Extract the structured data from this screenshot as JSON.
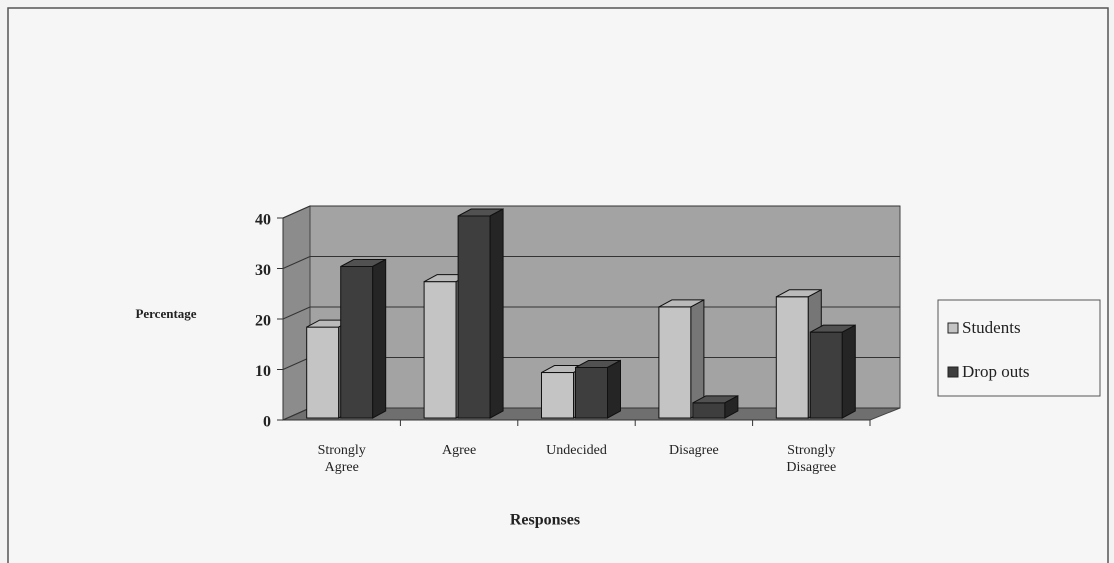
{
  "chart_data": {
    "type": "bar3d",
    "x_label": "Responses",
    "y_label": "Percentage",
    "categories": [
      "Strongly Agree",
      "Agree",
      "Undecided",
      "Disagree",
      "Strongly Disagree"
    ],
    "series": [
      {
        "name": "Students",
        "color": "#c4c4c4",
        "values": [
          18,
          27,
          9,
          22,
          24
        ]
      },
      {
        "name": "Drop outs",
        "color": "#3e3e3e",
        "values": [
          30,
          40,
          10,
          3,
          17
        ]
      }
    ],
    "ylim": [
      0,
      40
    ],
    "yticks": [
      0,
      10,
      20,
      30,
      40
    ],
    "grid": true,
    "legend": "right"
  }
}
